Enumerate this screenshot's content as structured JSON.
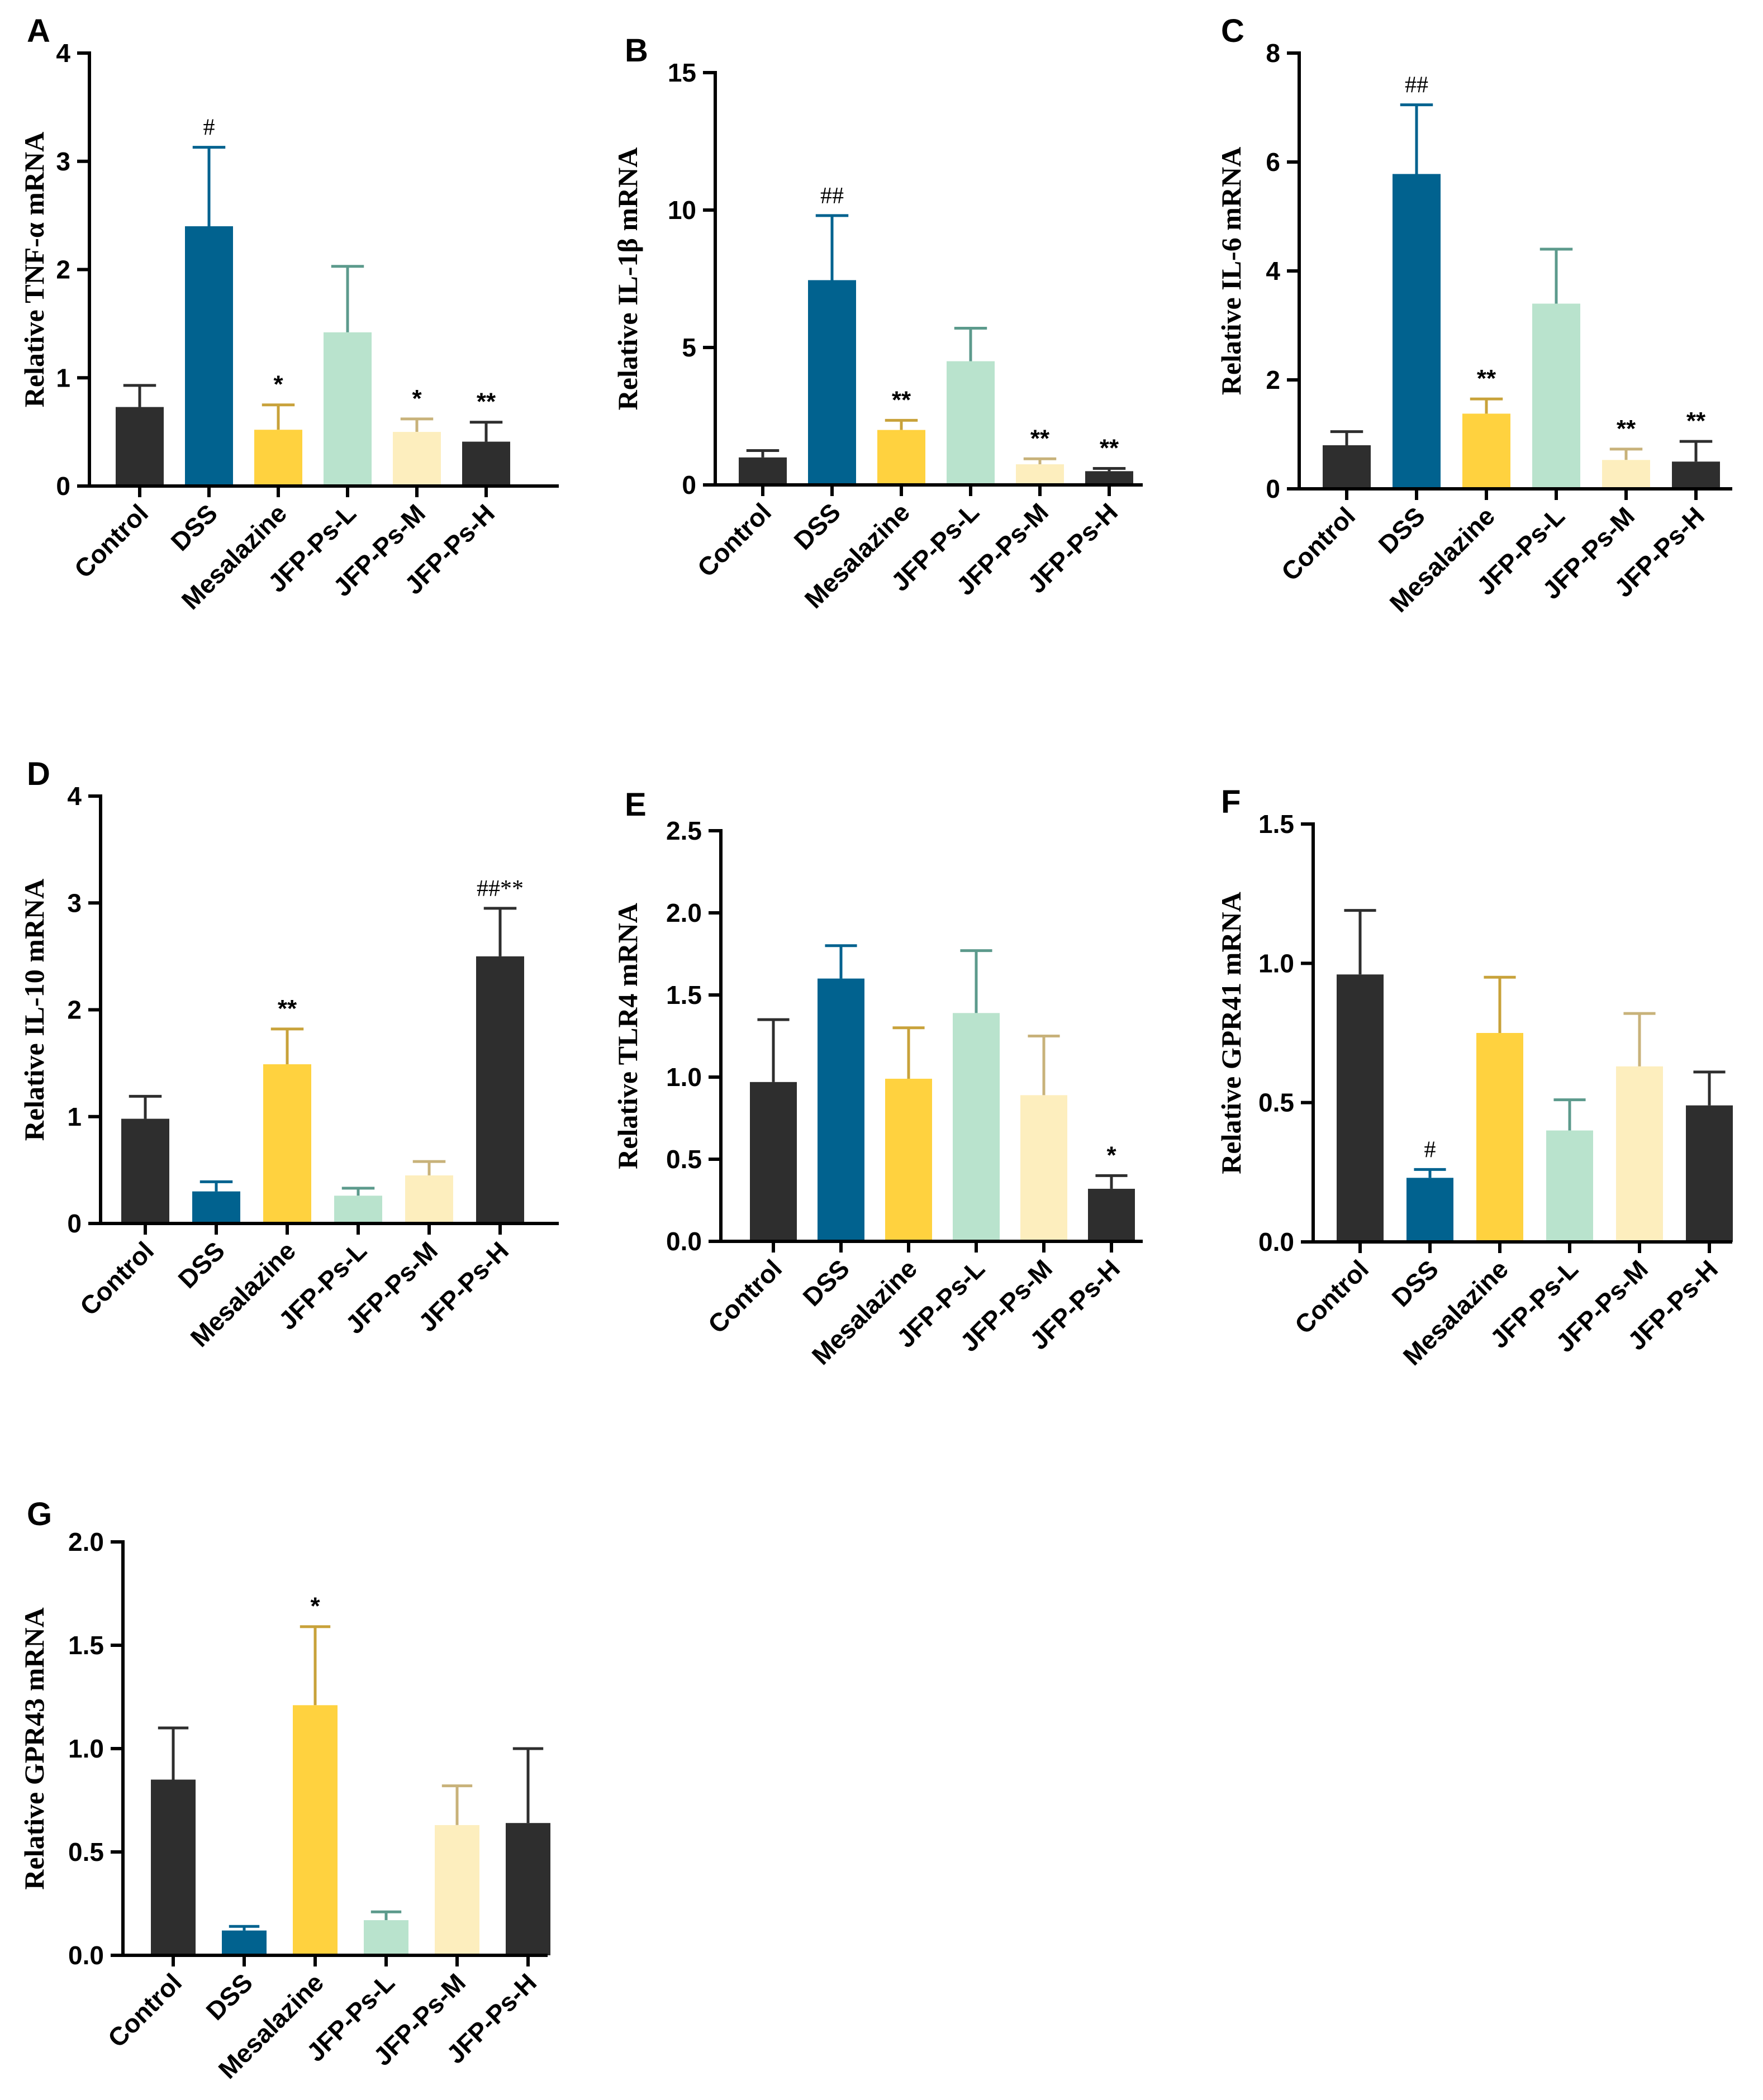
{
  "colors": {
    "Control": "#2e2e2e",
    "DSS": "#01628f",
    "Mesalazine": "#ffd23f",
    "JFP-Ps-L": "#b9e3cd",
    "JFP-Ps-M": "#fdeebe",
    "JFP-Ps-H": "#2e2e2e"
  },
  "error_colors": {
    "Control": "#2e2e2e",
    "DSS": "#01628f",
    "Mesalazine": "#c8a23a",
    "JFP-Ps-L": "#5c9a8c",
    "JFP-Ps-M": "#c8b27a",
    "JFP-Ps-H": "#2e2e2e"
  },
  "chart_data": [
    {
      "type": "bar",
      "panel": "A",
      "ylabel": "Relative TNF-α mRNA",
      "ylim": [
        0,
        4
      ],
      "yticks": [
        "0",
        "1",
        "2",
        "3",
        "4"
      ],
      "categories": [
        "Control",
        "DSS",
        "Mesalazine",
        "JFP-Ps-L",
        "JFP-Ps-M",
        "JFP-Ps-H"
      ],
      "values": [
        0.73,
        2.4,
        0.52,
        1.42,
        0.5,
        0.41
      ],
      "errors": [
        0.2,
        0.73,
        0.23,
        0.61,
        0.12,
        0.18
      ],
      "annotations": [
        "",
        "#",
        "*",
        "",
        "*",
        "**"
      ]
    },
    {
      "type": "bar",
      "panel": "B",
      "ylabel": "Relative IL-1β mRNA",
      "ylim": [
        0,
        15
      ],
      "yticks": [
        "0",
        "5",
        "10",
        "15"
      ],
      "categories": [
        "Control",
        "DSS",
        "Mesalazine",
        "JFP-Ps-L",
        "JFP-Ps-M",
        "JFP-Ps-H"
      ],
      "values": [
        1.0,
        7.45,
        2.0,
        4.5,
        0.75,
        0.5
      ],
      "errors": [
        0.25,
        2.35,
        0.35,
        1.2,
        0.2,
        0.1
      ],
      "annotations": [
        "",
        "##",
        "**",
        "",
        "**",
        "**"
      ]
    },
    {
      "type": "bar",
      "panel": "C",
      "ylabel": "Relative IL-6 mRNA",
      "ylim": [
        0,
        8
      ],
      "yticks": [
        "0",
        "2",
        "4",
        "6",
        "8"
      ],
      "categories": [
        "Control",
        "DSS",
        "Mesalazine",
        "JFP-Ps-L",
        "JFP-Ps-M",
        "JFP-Ps-H"
      ],
      "values": [
        0.8,
        5.78,
        1.38,
        3.4,
        0.53,
        0.5
      ],
      "errors": [
        0.25,
        1.27,
        0.27,
        1.0,
        0.2,
        0.37
      ],
      "annotations": [
        "",
        "##",
        "**",
        "",
        "**",
        "**"
      ]
    },
    {
      "type": "bar",
      "panel": "D",
      "ylabel": "Relative IL-10 mRNA",
      "ylim": [
        0,
        4
      ],
      "yticks": [
        "0",
        "1",
        "2",
        "3",
        "4"
      ],
      "categories": [
        "Control",
        "DSS",
        "Mesalazine",
        "JFP-Ps-L",
        "JFP-Ps-M",
        "JFP-Ps-H"
      ],
      "values": [
        0.98,
        0.3,
        1.49,
        0.26,
        0.45,
        2.5
      ],
      "errors": [
        0.21,
        0.09,
        0.33,
        0.07,
        0.13,
        0.45
      ],
      "annotations": [
        "",
        "",
        "**",
        "",
        "",
        "##**"
      ]
    },
    {
      "type": "bar",
      "panel": "E",
      "ylabel": "Relative TLR4 mRNA",
      "ylim": [
        0,
        2.5
      ],
      "yticks": [
        "0.0",
        "0.5",
        "1.0",
        "1.5",
        "2.0",
        "2.5"
      ],
      "categories": [
        "Control",
        "DSS",
        "Mesalazine",
        "JFP-Ps-L",
        "JFP-Ps-M",
        "JFP-Ps-H"
      ],
      "values": [
        0.97,
        1.6,
        0.99,
        1.39,
        0.89,
        0.32
      ],
      "errors": [
        0.38,
        0.2,
        0.31,
        0.38,
        0.36,
        0.08
      ],
      "annotations": [
        "",
        "",
        "",
        "",
        "",
        "*"
      ]
    },
    {
      "type": "bar",
      "panel": "F",
      "ylabel": "Relative GPR41 mRNA",
      "ylim": [
        0,
        1.5
      ],
      "yticks": [
        "0.0",
        "0.5",
        "1.0",
        "1.5"
      ],
      "categories": [
        "Control",
        "DSS",
        "Mesalazine",
        "JFP-Ps-L",
        "JFP-Ps-M",
        "JFP-Ps-H"
      ],
      "values": [
        0.96,
        0.23,
        0.75,
        0.4,
        0.63,
        0.49
      ],
      "errors": [
        0.23,
        0.03,
        0.2,
        0.11,
        0.19,
        0.12
      ],
      "annotations": [
        "",
        "#",
        "",
        "",
        "",
        ""
      ]
    },
    {
      "type": "bar",
      "panel": "G",
      "ylabel": "Relative GPR43 mRNA",
      "ylim": [
        0,
        2.0
      ],
      "yticks": [
        "0.0",
        "0.5",
        "1.0",
        "1.5",
        "2.0"
      ],
      "categories": [
        "Control",
        "DSS",
        "Mesalazine",
        "JFP-Ps-L",
        "JFP-Ps-M",
        "JFP-Ps-H"
      ],
      "values": [
        0.85,
        0.12,
        1.21,
        0.17,
        0.63,
        0.64
      ],
      "errors": [
        0.25,
        0.02,
        0.38,
        0.04,
        0.19,
        0.36
      ],
      "annotations": [
        "",
        "",
        "*",
        "",
        "",
        ""
      ]
    }
  ]
}
